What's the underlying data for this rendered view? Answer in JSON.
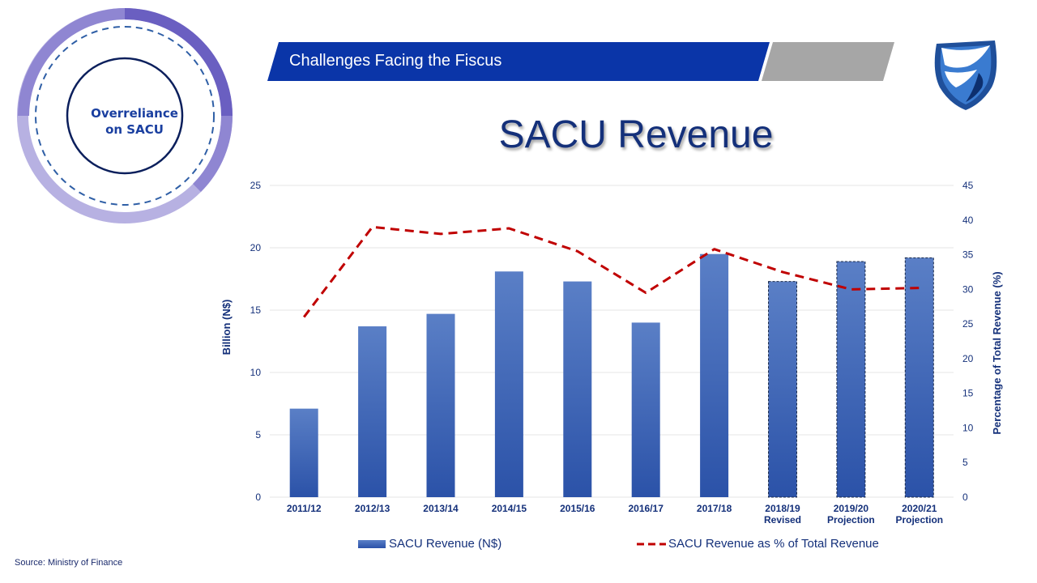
{
  "header": {
    "title": "Challenges Facing the Fiscus"
  },
  "sidebar": {
    "ring_label_line1": "Overreliance",
    "ring_label_line2": "on SACU"
  },
  "slide": {
    "title": "SACU Revenue"
  },
  "footer": {
    "source": "Source: Ministry of Finance"
  },
  "colors": {
    "header_blue": "#0a35a8",
    "header_grey": "#a6a6a6",
    "bar_blue": "#3a62b4",
    "line_red": "#c00000",
    "ring_purple_dark": "#6a5fc1",
    "ring_purple_mid": "#8f86d2",
    "ring_purple_light": "#b7b1e2",
    "text_navy": "#14307a"
  },
  "chart_data": {
    "type": "bar",
    "categories": [
      [
        "2011/12"
      ],
      [
        "2012/13"
      ],
      [
        "2013/14"
      ],
      [
        "2014/15"
      ],
      [
        "2015/16"
      ],
      [
        "2016/17"
      ],
      [
        "2017/18"
      ],
      [
        "2018/19",
        "Revised"
      ],
      [
        "2019/20",
        "Projection"
      ],
      [
        "2020/21",
        "Projection"
      ]
    ],
    "series": [
      {
        "name": "SACU Revenue (N$)",
        "type": "bar",
        "axis": "left",
        "values": [
          7.1,
          13.7,
          14.7,
          18.1,
          17.3,
          14.0,
          19.5,
          17.3,
          18.9,
          19.2
        ]
      },
      {
        "name": "SACU Revenue as % of Total Revenue",
        "type": "line",
        "style": "dashed",
        "axis": "right",
        "values": [
          26,
          39,
          38,
          38.8,
          35.5,
          29.5,
          35.8,
          32.5,
          30,
          30.2
        ]
      }
    ],
    "dashed_outline_categories": [
      7,
      8,
      9
    ],
    "ylabel": "Billion (N$)",
    "ylim": [
      0,
      25
    ],
    "yticks": [
      0,
      5,
      10,
      15,
      20,
      25
    ],
    "y2label": "Percentage of Total Revenue (%)",
    "y2lim": [
      0,
      45
    ],
    "y2ticks": [
      0,
      5,
      10,
      15,
      20,
      25,
      30,
      35,
      40,
      45
    ],
    "grid": true,
    "legend_position": "bottom"
  }
}
